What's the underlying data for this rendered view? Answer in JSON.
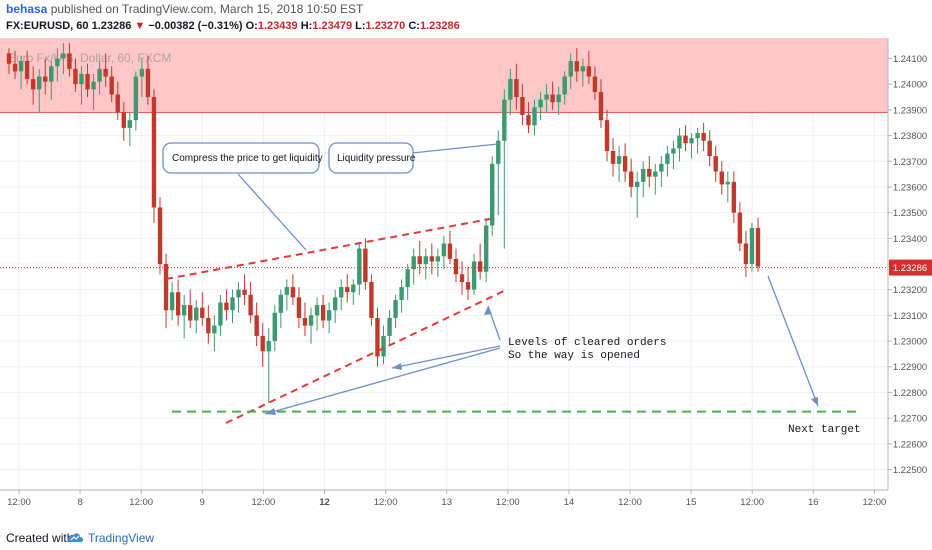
{
  "header": {
    "author": "behasa",
    "published_text": "published on TradingView.com, March 15, 2018 10:50 EST",
    "symbol": "FX:EURUSD, 60",
    "last": "1.23286",
    "change_arrow": "▼",
    "change": "−0.00382 (−0.31%)",
    "o_label": "O:",
    "o_value": "1.23439",
    "h_label": "H:",
    "h_value": "1.23479",
    "l_label": "L:",
    "l_value": "1.23270",
    "c_label": "C:",
    "c_value": "1.23286",
    "watermark": "Euro Fx/U.S. Dollar, 60, FXCM"
  },
  "footer": {
    "created_with": "Created with",
    "brand": "TradingView"
  },
  "colors": {
    "up": "#3d9970",
    "down": "#c0392b",
    "zone": "#ffc7c7",
    "accent": "#2962ff"
  },
  "chart_data": {
    "type": "candlestick",
    "x_tick_labels": [
      "12:00",
      "8",
      "12:00",
      "9",
      "12:00",
      "12",
      "12:00",
      "13",
      "12:00",
      "14",
      "12:00",
      "15",
      "12:00",
      "16",
      "12:00"
    ],
    "y_ticks": [
      1.241,
      1.24,
      1.239,
      1.238,
      1.237,
      1.236,
      1.235,
      1.234,
      1.233,
      1.232,
      1.231,
      1.23,
      1.229,
      1.228,
      1.227,
      1.226,
      1.225
    ],
    "y_tick_labels": [
      "1.24100",
      "1.24000",
      "1.23900",
      "1.23800",
      "1.23700",
      "1.23600",
      "1.23500",
      "1.23400",
      "1.23300",
      "1.23200",
      "1.23100",
      "1.23000",
      "1.22900",
      "1.22800",
      "1.22700",
      "1.22600",
      "1.22500"
    ],
    "ylim": [
      1.2242,
      1.2418
    ],
    "price_label": "1.23286",
    "last_price": 1.23286,
    "resistance_zone": [
      1.2389,
      1.2418
    ],
    "target_level": 1.22725,
    "annotations": {
      "callout_compress": "Compress the price to get liquidity",
      "callout_liquidity": "Liquidity pressure",
      "levels_line1": "Levels of cleared orders",
      "levels_line2": "So the way is opened",
      "next_target": "Next target"
    },
    "candles": [
      [
        1.2412,
        1.2414,
        1.2404,
        1.2408
      ],
      [
        1.2408,
        1.2413,
        1.2402,
        1.2405
      ],
      [
        1.2405,
        1.2411,
        1.2398,
        1.2409
      ],
      [
        1.2409,
        1.2413,
        1.24,
        1.2402
      ],
      [
        1.2402,
        1.2407,
        1.2392,
        1.2398
      ],
      [
        1.2398,
        1.2406,
        1.2389,
        1.2403
      ],
      [
        1.2403,
        1.241,
        1.2396,
        1.2401
      ],
      [
        1.2401,
        1.2409,
        1.2394,
        1.2407
      ],
      [
        1.2407,
        1.2414,
        1.2401,
        1.241
      ],
      [
        1.241,
        1.2416,
        1.2404,
        1.2412
      ],
      [
        1.2412,
        1.2416,
        1.2403,
        1.2406
      ],
      [
        1.2406,
        1.241,
        1.2397,
        1.24
      ],
      [
        1.24,
        1.2407,
        1.2392,
        1.2404
      ],
      [
        1.2404,
        1.2408,
        1.2395,
        1.2398
      ],
      [
        1.2398,
        1.2404,
        1.239,
        1.2401
      ],
      [
        1.2401,
        1.2409,
        1.2396,
        1.2406
      ],
      [
        1.2406,
        1.2412,
        1.2399,
        1.2403
      ],
      [
        1.2403,
        1.2407,
        1.2393,
        1.2396
      ],
      [
        1.2396,
        1.2401,
        1.2386,
        1.2389
      ],
      [
        1.2389,
        1.2393,
        1.2378,
        1.2383
      ],
      [
        1.2383,
        1.2389,
        1.2376,
        1.2386
      ],
      [
        1.2386,
        1.2405,
        1.2382,
        1.2403
      ],
      [
        1.2403,
        1.241,
        1.2395,
        1.2406
      ],
      [
        1.2406,
        1.2411,
        1.2392,
        1.2395
      ],
      [
        1.2395,
        1.2398,
        1.2346,
        1.2352
      ],
      [
        1.2352,
        1.2356,
        1.2326,
        1.233
      ],
      [
        1.233,
        1.2334,
        1.2305,
        1.2312
      ],
      [
        1.2312,
        1.2323,
        1.2308,
        1.2319
      ],
      [
        1.2319,
        1.2324,
        1.2306,
        1.231
      ],
      [
        1.231,
        1.2318,
        1.2301,
        1.2314
      ],
      [
        1.2314,
        1.232,
        1.2305,
        1.2308
      ],
      [
        1.2308,
        1.2316,
        1.2303,
        1.2313
      ],
      [
        1.2313,
        1.2319,
        1.2306,
        1.2309
      ],
      [
        1.2309,
        1.2314,
        1.2299,
        1.2303
      ],
      [
        1.2303,
        1.231,
        1.2296,
        1.2306
      ],
      [
        1.2306,
        1.2318,
        1.2302,
        1.2315
      ],
      [
        1.2315,
        1.232,
        1.2308,
        1.2312
      ],
      [
        1.2312,
        1.232,
        1.2307,
        1.2317
      ],
      [
        1.2317,
        1.2323,
        1.2311,
        1.232
      ],
      [
        1.232,
        1.2326,
        1.2314,
        1.2318
      ],
      [
        1.2318,
        1.2323,
        1.2307,
        1.231
      ],
      [
        1.231,
        1.2315,
        1.2298,
        1.2302
      ],
      [
        1.2302,
        1.2307,
        1.229,
        1.2296
      ],
      [
        1.2296,
        1.2305,
        1.2276,
        1.23
      ],
      [
        1.23,
        1.2314,
        1.2296,
        1.2311
      ],
      [
        1.2311,
        1.232,
        1.2305,
        1.2318
      ],
      [
        1.2318,
        1.2324,
        1.2312,
        1.2321
      ],
      [
        1.2321,
        1.2326,
        1.2314,
        1.2317
      ],
      [
        1.2317,
        1.2321,
        1.2305,
        1.2309
      ],
      [
        1.2309,
        1.2315,
        1.2302,
        1.2306
      ],
      [
        1.2306,
        1.2313,
        1.2299,
        1.231
      ],
      [
        1.231,
        1.2317,
        1.2304,
        1.2314
      ],
      [
        1.2314,
        1.2318,
        1.2305,
        1.2308
      ],
      [
        1.2308,
        1.2315,
        1.2303,
        1.2312
      ],
      [
        1.2312,
        1.232,
        1.2307,
        1.2317
      ],
      [
        1.2317,
        1.2324,
        1.2312,
        1.2321
      ],
      [
        1.2321,
        1.2326,
        1.2315,
        1.2319
      ],
      [
        1.2319,
        1.2324,
        1.2314,
        1.2322
      ],
      [
        1.2322,
        1.2338,
        1.2318,
        1.2336
      ],
      [
        1.2336,
        1.234,
        1.232,
        1.2323
      ],
      [
        1.2323,
        1.2326,
        1.2306,
        1.2309
      ],
      [
        1.2309,
        1.2313,
        1.229,
        1.2294
      ],
      [
        1.2294,
        1.2306,
        1.2291,
        1.2302
      ],
      [
        1.2302,
        1.2312,
        1.2298,
        1.2309
      ],
      [
        1.2309,
        1.2318,
        1.2305,
        1.2316
      ],
      [
        1.2316,
        1.2324,
        1.2311,
        1.2321
      ],
      [
        1.2321,
        1.233,
        1.2316,
        1.2328
      ],
      [
        1.2328,
        1.2336,
        1.2322,
        1.2333
      ],
      [
        1.2333,
        1.2339,
        1.2326,
        1.233
      ],
      [
        1.233,
        1.2336,
        1.2324,
        1.2333
      ],
      [
        1.2333,
        1.2338,
        1.2326,
        1.2331
      ],
      [
        1.2331,
        1.2336,
        1.2325,
        1.2333
      ],
      [
        1.2333,
        1.2341,
        1.2328,
        1.2338
      ],
      [
        1.2338,
        1.2343,
        1.233,
        1.2332
      ],
      [
        1.2332,
        1.2336,
        1.2323,
        1.2326
      ],
      [
        1.2326,
        1.2331,
        1.2318,
        1.2323
      ],
      [
        1.2323,
        1.2329,
        1.2316,
        1.232
      ],
      [
        1.232,
        1.2334,
        1.2318,
        1.2331
      ],
      [
        1.2331,
        1.2338,
        1.2324,
        1.2327
      ],
      [
        1.2327,
        1.2348,
        1.2323,
        1.2345
      ],
      [
        1.2345,
        1.2372,
        1.2341,
        1.2369
      ],
      [
        1.2369,
        1.2382,
        1.2349,
        1.2378
      ],
      [
        1.2378,
        1.2398,
        1.2336,
        1.2394
      ],
      [
        1.2394,
        1.2406,
        1.2388,
        1.2402
      ],
      [
        1.2402,
        1.2408,
        1.239,
        1.2395
      ],
      [
        1.2395,
        1.24,
        1.2384,
        1.2388
      ],
      [
        1.2388,
        1.2393,
        1.2381,
        1.2384
      ],
      [
        1.2384,
        1.2394,
        1.238,
        1.2391
      ],
      [
        1.2391,
        1.2397,
        1.2386,
        1.2394
      ],
      [
        1.2394,
        1.24,
        1.2389,
        1.2396
      ],
      [
        1.2396,
        1.2401,
        1.239,
        1.2393
      ],
      [
        1.2393,
        1.2399,
        1.2388,
        1.2396
      ],
      [
        1.2396,
        1.2405,
        1.2392,
        1.2403
      ],
      [
        1.2403,
        1.2412,
        1.2398,
        1.2409
      ],
      [
        1.2409,
        1.2414,
        1.2401,
        1.2405
      ],
      [
        1.2405,
        1.241,
        1.2399,
        1.2407
      ],
      [
        1.2407,
        1.2413,
        1.24,
        1.2403
      ],
      [
        1.2403,
        1.2407,
        1.2394,
        1.2397
      ],
      [
        1.2397,
        1.2402,
        1.2383,
        1.2386
      ],
      [
        1.2386,
        1.239,
        1.237,
        1.2374
      ],
      [
        1.2374,
        1.2379,
        1.2364,
        1.2369
      ],
      [
        1.2369,
        1.2376,
        1.2362,
        1.2372
      ],
      [
        1.2372,
        1.2377,
        1.2362,
        1.2366
      ],
      [
        1.2366,
        1.2371,
        1.2356,
        1.236
      ],
      [
        1.236,
        1.2366,
        1.2348,
        1.2362
      ],
      [
        1.2362,
        1.237,
        1.2356,
        1.2367
      ],
      [
        1.2367,
        1.2372,
        1.236,
        1.2364
      ],
      [
        1.2364,
        1.2369,
        1.2357,
        1.2366
      ],
      [
        1.2366,
        1.2372,
        1.236,
        1.2369
      ],
      [
        1.2369,
        1.2376,
        1.2364,
        1.2373
      ],
      [
        1.2373,
        1.2378,
        1.2367,
        1.2375
      ],
      [
        1.2375,
        1.2383,
        1.237,
        1.238
      ],
      [
        1.238,
        1.2384,
        1.2374,
        1.2377
      ],
      [
        1.2377,
        1.2381,
        1.2371,
        1.2379
      ],
      [
        1.2379,
        1.2383,
        1.2373,
        1.2381
      ],
      [
        1.2381,
        1.2385,
        1.2374,
        1.2378
      ],
      [
        1.2378,
        1.2382,
        1.2368,
        1.2372
      ],
      [
        1.2372,
        1.2376,
        1.2362,
        1.2366
      ],
      [
        1.2366,
        1.237,
        1.2357,
        1.2361
      ],
      [
        1.2361,
        1.2366,
        1.2354,
        1.2362
      ],
      [
        1.2362,
        1.2366,
        1.2346,
        1.235
      ],
      [
        1.235,
        1.2354,
        1.2335,
        1.2338
      ],
      [
        1.2338,
        1.2343,
        1.2325,
        1.233
      ],
      [
        1.233,
        1.2346,
        1.2327,
        1.2344
      ],
      [
        1.2344,
        1.2348,
        1.2327,
        1.2329
      ]
    ]
  }
}
